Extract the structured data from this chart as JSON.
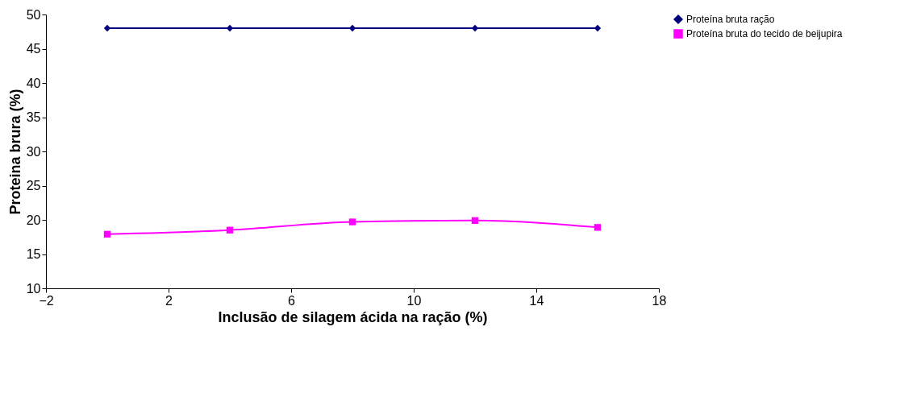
{
  "chart_data": {
    "type": "line",
    "xlabel": "Inclusão de silagem ácida na ração (%)",
    "ylabel": "Proteina brura (%)",
    "x": [
      0,
      4,
      8,
      12,
      16
    ],
    "xlim": [
      -2,
      18
    ],
    "xticks": [
      -2,
      2,
      6,
      10,
      14,
      18
    ],
    "ylim": [
      10,
      50
    ],
    "yticks": [
      10,
      15,
      20,
      25,
      30,
      35,
      40,
      45,
      50
    ],
    "series": [
      {
        "name": "Proteína bruta ração",
        "color": "#000080",
        "marker": "diamond",
        "values": [
          48,
          48,
          48,
          48,
          48
        ]
      },
      {
        "name": "Proteína bruta do tecido de beijupira",
        "color": "#ff00ff",
        "marker": "square",
        "values": [
          17.9,
          18.5,
          19.7,
          19.9,
          18.9
        ]
      }
    ],
    "grid": false,
    "legend": "top right",
    "line_style": "solid"
  }
}
